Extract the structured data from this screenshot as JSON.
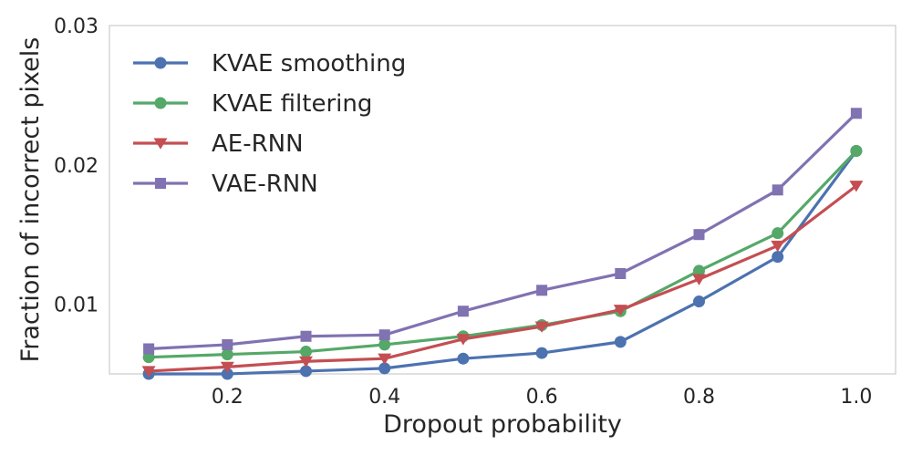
{
  "chart_data": {
    "type": "line",
    "title": "",
    "xlabel": "Dropout probability",
    "ylabel": "Fraction of incorrect pixels",
    "xlim": [
      0.05,
      1.05
    ],
    "ylim": [
      0.005,
      0.03
    ],
    "xticks": [
      0.2,
      0.4,
      0.6,
      0.8,
      1.0
    ],
    "xtick_labels": [
      "0.2",
      "0.4",
      "0.6",
      "0.8",
      "1.0"
    ],
    "yticks": [
      0.01,
      0.02,
      0.03
    ],
    "ytick_labels": [
      "0.01",
      "0.02",
      "0.03"
    ],
    "grid": false,
    "legend_position": "top-left",
    "x": [
      0.1,
      0.2,
      0.3,
      0.4,
      0.5,
      0.6,
      0.7,
      0.8,
      0.9,
      1.0
    ],
    "series": [
      {
        "name": "KVAE smoothing",
        "color": "#4c72b0",
        "marker": "circle",
        "values": [
          0.005,
          0.005,
          0.0052,
          0.0054,
          0.0061,
          0.0065,
          0.0073,
          0.0102,
          0.0134,
          0.021
        ]
      },
      {
        "name": "KVAE filtering",
        "color": "#55a868",
        "marker": "circle",
        "values": [
          0.0062,
          0.0064,
          0.0066,
          0.0071,
          0.0077,
          0.0085,
          0.0095,
          0.0124,
          0.0151,
          0.021
        ]
      },
      {
        "name": "AE-RNN",
        "color": "#c44e52",
        "marker": "triangle-down",
        "values": [
          0.0052,
          0.0055,
          0.0059,
          0.0061,
          0.0075,
          0.0084,
          0.0096,
          0.0118,
          0.0142,
          0.0185
        ]
      },
      {
        "name": "VAE-RNN",
        "color": "#8172b2",
        "marker": "square",
        "values": [
          0.0068,
          0.0071,
          0.0077,
          0.0078,
          0.0095,
          0.011,
          0.0122,
          0.015,
          0.0182,
          0.0237
        ]
      }
    ]
  }
}
